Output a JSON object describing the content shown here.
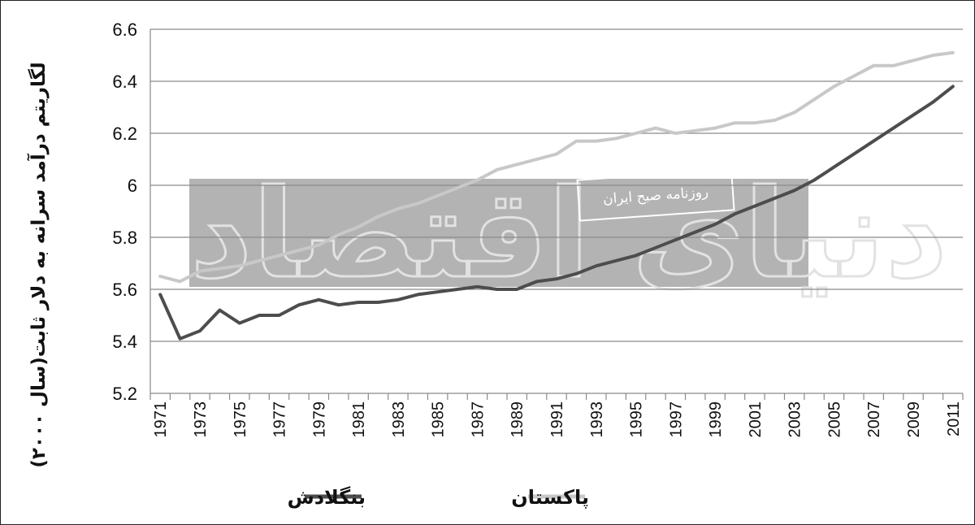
{
  "chart_data": {
    "type": "line",
    "title": "",
    "ylabel": "لگاریتم درآمد سرانه به دلار ثابت(سال ۲۰۰۰)",
    "xlabel": "",
    "ylim": [
      5.2,
      6.6
    ],
    "yticks": [
      5.2,
      5.4,
      5.6,
      5.8,
      6,
      6.2,
      6.4,
      6.6
    ],
    "x": [
      1971,
      1972,
      1973,
      1974,
      1975,
      1976,
      1977,
      1978,
      1979,
      1980,
      1981,
      1982,
      1983,
      1984,
      1985,
      1986,
      1987,
      1988,
      1989,
      1990,
      1991,
      1992,
      1993,
      1994,
      1995,
      1996,
      1997,
      1998,
      1999,
      2000,
      2001,
      2002,
      2003,
      2004,
      2005,
      2006,
      2007,
      2008,
      2009,
      2010,
      2011
    ],
    "xtick_labels": [
      "1971",
      "1973",
      "1975",
      "1977",
      "1979",
      "1981",
      "1983",
      "1985",
      "1987",
      "1989",
      "1991",
      "1993",
      "1995",
      "1997",
      "1999",
      "2001",
      "2003",
      "2005",
      "2007",
      "2009",
      "2011"
    ],
    "grid": "horizontal",
    "legend_position": "bottom",
    "series": [
      {
        "name": "بنگلادش",
        "color": "#4d4d4d",
        "values": [
          5.58,
          5.41,
          5.44,
          5.52,
          5.47,
          5.5,
          5.5,
          5.54,
          5.56,
          5.54,
          5.55,
          5.55,
          5.56,
          5.58,
          5.59,
          5.6,
          5.61,
          5.6,
          5.6,
          5.63,
          5.64,
          5.66,
          5.69,
          5.71,
          5.73,
          5.76,
          5.79,
          5.82,
          5.85,
          5.89,
          5.92,
          5.95,
          5.98,
          6.02,
          6.07,
          6.12,
          6.17,
          6.22,
          6.27,
          6.32,
          6.38
        ]
      },
      {
        "name": "پاکستان",
        "color": "#c8c8c8",
        "values": [
          5.65,
          5.63,
          5.67,
          5.68,
          5.69,
          5.71,
          5.73,
          5.75,
          5.77,
          5.81,
          5.84,
          5.88,
          5.91,
          5.93,
          5.96,
          5.99,
          6.02,
          6.06,
          6.08,
          6.1,
          6.12,
          6.17,
          6.17,
          6.18,
          6.2,
          6.22,
          6.2,
          6.21,
          6.22,
          6.24,
          6.24,
          6.25,
          6.28,
          6.33,
          6.38,
          6.42,
          6.46,
          6.46,
          6.48,
          6.5,
          6.51
        ]
      }
    ]
  },
  "watermark": {
    "banner_text": "روزنامه صبح ایران",
    "logo_text": "دنیای اقتصاد"
  }
}
